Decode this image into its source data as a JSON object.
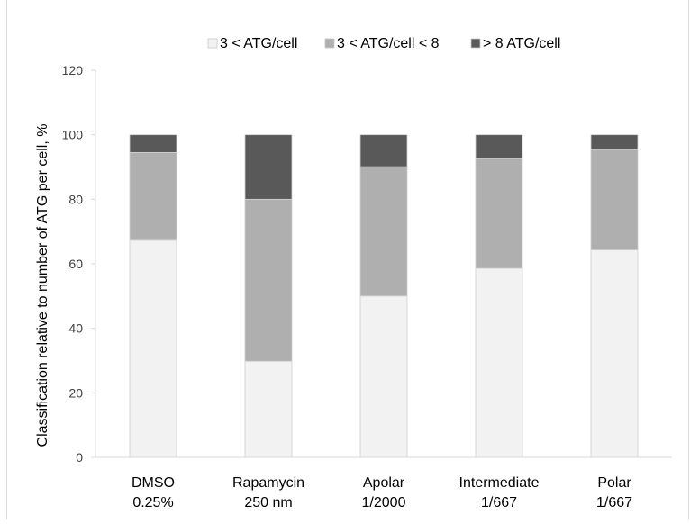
{
  "chart_data": {
    "type": "bar",
    "stacked": true,
    "title": "",
    "xlabel": "",
    "ylabel": "Classification relative to number of ATG per cell, %",
    "ylim": [
      0,
      120
    ],
    "yticks": [
      0,
      20,
      40,
      60,
      80,
      100,
      120
    ],
    "grid": false,
    "legend": "top",
    "categories": [
      [
        "DMSO",
        "0.25%"
      ],
      [
        "Rapamycin",
        "250 nm"
      ],
      [
        "Apolar",
        "1/2000"
      ],
      [
        "Intermediate",
        "1/667"
      ],
      [
        "Polar",
        "1/667"
      ]
    ],
    "series": [
      {
        "name": "3 < ATG/cell",
        "color": "#f2f2f2",
        "values": [
          67.3,
          29.8,
          50.0,
          58.6,
          64.3
        ]
      },
      {
        "name": "3 < ATG/cell < 8",
        "color": "#afafaf",
        "values": [
          27.2,
          50.2,
          40.1,
          34.0,
          31.0
        ]
      },
      {
        "name": "> 8 ATG/cell",
        "color": "#595959",
        "values": [
          5.5,
          20.0,
          9.9,
          7.4,
          4.7
        ]
      }
    ]
  }
}
